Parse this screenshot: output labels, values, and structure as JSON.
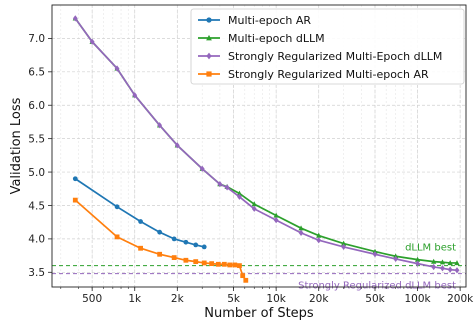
{
  "chart_data": {
    "type": "line",
    "xlabel": "Number of Steps",
    "ylabel": "Validation Loss",
    "xscale": "log",
    "xlim": [
      260,
      220000
    ],
    "ylim": [
      3.28,
      7.5
    ],
    "grid": true,
    "legend_position": "top-right",
    "x_ticks": [
      {
        "value": 500,
        "label": "500"
      },
      {
        "value": 1000,
        "label": "1k"
      },
      {
        "value": 2000,
        "label": "2k"
      },
      {
        "value": 5000,
        "label": "5k"
      },
      {
        "value": 10000,
        "label": "10k"
      },
      {
        "value": 20000,
        "label": "20k"
      },
      {
        "value": 50000,
        "label": "50k"
      },
      {
        "value": 100000,
        "label": "100k"
      },
      {
        "value": 200000,
        "label": "200k"
      }
    ],
    "y_ticks": [
      {
        "value": 3.5,
        "label": "3.5"
      },
      {
        "value": 4.0,
        "label": "4.0"
      },
      {
        "value": 4.5,
        "label": "4.5"
      },
      {
        "value": 5.0,
        "label": "5.0"
      },
      {
        "value": 5.5,
        "label": "5.5"
      },
      {
        "value": 6.0,
        "label": "6.0"
      },
      {
        "value": 6.5,
        "label": "6.5"
      },
      {
        "value": 7.0,
        "label": "7.0"
      }
    ],
    "series": [
      {
        "name": "Multi-epoch AR",
        "color": "#1f77b4",
        "marker": "circle",
        "x": [
          380,
          750,
          1100,
          1500,
          1900,
          2300,
          2700,
          3100
        ],
        "y": [
          4.9,
          4.48,
          4.26,
          4.1,
          4.0,
          3.95,
          3.91,
          3.88
        ]
      },
      {
        "name": "Multi-epoch dLLM",
        "color": "#2ca02c",
        "marker": "triangle",
        "x": [
          380,
          500,
          750,
          1000,
          1500,
          2000,
          3000,
          4000,
          4500,
          5500,
          7000,
          10000,
          15000,
          20000,
          30000,
          50000,
          70000,
          100000,
          130000,
          150000,
          170000,
          190000
        ],
        "y": [
          7.3,
          6.95,
          6.55,
          6.15,
          5.7,
          5.4,
          5.05,
          4.82,
          4.78,
          4.68,
          4.52,
          4.35,
          4.16,
          4.05,
          3.93,
          3.81,
          3.74,
          3.69,
          3.66,
          3.65,
          3.64,
          3.64
        ]
      },
      {
        "name": "Strongly Regularized Multi-Epoch dLLM",
        "color": "#9467bd",
        "marker": "diamond",
        "x": [
          380,
          500,
          750,
          1000,
          1500,
          2000,
          3000,
          4000,
          4500,
          5500,
          7000,
          10000,
          15000,
          20000,
          30000,
          50000,
          70000,
          100000,
          130000,
          150000,
          170000,
          190000
        ],
        "y": [
          7.3,
          6.95,
          6.55,
          6.15,
          5.7,
          5.4,
          5.05,
          4.82,
          4.77,
          4.63,
          4.45,
          4.28,
          4.09,
          3.98,
          3.88,
          3.77,
          3.7,
          3.63,
          3.58,
          3.56,
          3.54,
          3.53
        ]
      },
      {
        "name": "Strongly Regularized Multi-epoch AR",
        "color": "#ff7f0e",
        "marker": "square",
        "x": [
          380,
          750,
          1100,
          1500,
          1900,
          2300,
          2700,
          3100,
          3500,
          3900,
          4300,
          4700,
          5100,
          5500,
          5800,
          6100
        ],
        "y": [
          4.58,
          4.03,
          3.86,
          3.77,
          3.72,
          3.68,
          3.66,
          3.64,
          3.63,
          3.62,
          3.62,
          3.61,
          3.61,
          3.6,
          3.45,
          3.38
        ]
      }
    ],
    "reference_lines": [
      {
        "label": "dLLM best",
        "value": 3.6,
        "color": "#2ca02c"
      },
      {
        "label": "Strongly Regularized dLLM best",
        "value": 3.48,
        "color": "#9467bd"
      }
    ]
  }
}
